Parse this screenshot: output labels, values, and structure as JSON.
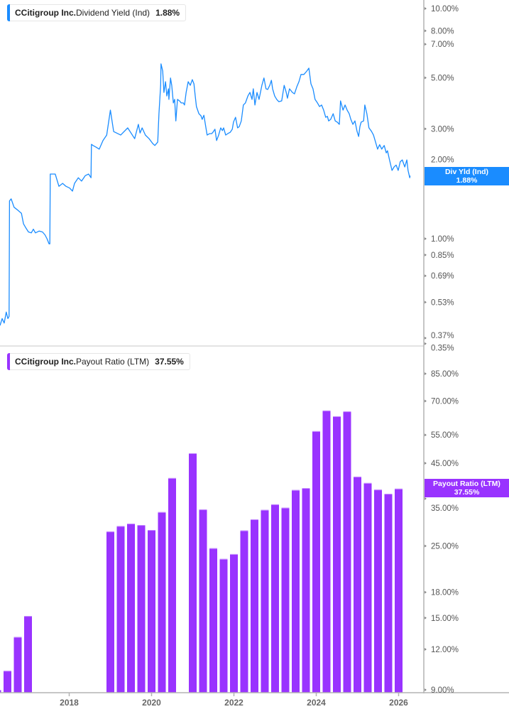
{
  "colors": {
    "yield": "#1a8cff",
    "payout": "#9933ff",
    "axis": "#b3b3b3",
    "divider": "#e3e3e3"
  },
  "top_legend": {
    "ticker": "C",
    "company": "Citigroup Inc.",
    "metric": "Dividend Yield (Ind)",
    "value": "1.88%"
  },
  "top_badge": {
    "label": "Div Yld (Ind)",
    "value": "1.88%"
  },
  "bottom_legend": {
    "ticker": "C",
    "company": "Citigroup Inc.",
    "metric": "Payout Ratio (LTM)",
    "value": "37.55%"
  },
  "bottom_badge": {
    "label": "Payout Ratio (LTM)",
    "value": "37.55%"
  },
  "chart_data": [
    {
      "type": "line",
      "series_label": "Dividend Yield (Ind)",
      "y_scale": "log",
      "y_unit": "%",
      "y_ticks": [
        "10.00%",
        "8.00%",
        "7.00%",
        "5.00%",
        "3.00%",
        "2.00%",
        "1.00%",
        "0.85%",
        "0.69%",
        "0.53%",
        "0.37%",
        "0.35%"
      ],
      "y_tick_values": [
        10,
        8,
        7,
        5,
        3,
        2,
        1,
        0.85,
        0.69,
        0.53,
        0.37,
        0.35
      ],
      "ylim": [
        0.35,
        11
      ],
      "xlim": [
        2016.32,
        2026.61
      ],
      "grid": false,
      "legend": "top-left",
      "last_value": 1.88,
      "points": [
        [
          2016.32,
          0.42
        ],
        [
          2016.37,
          0.45
        ],
        [
          2016.42,
          0.43
        ],
        [
          2016.47,
          0.48
        ],
        [
          2016.51,
          0.45
        ],
        [
          2016.54,
          0.46
        ],
        [
          2016.55,
          1.46
        ],
        [
          2016.59,
          1.49
        ],
        [
          2016.66,
          1.37
        ],
        [
          2016.73,
          1.34
        ],
        [
          2016.84,
          1.29
        ],
        [
          2016.89,
          1.16
        ],
        [
          2016.94,
          1.12
        ],
        [
          2017.01,
          1.07
        ],
        [
          2017.08,
          1.06
        ],
        [
          2017.13,
          1.1
        ],
        [
          2017.18,
          1.06
        ],
        [
          2017.27,
          1.08
        ],
        [
          2017.35,
          1.07
        ],
        [
          2017.41,
          1.04
        ],
        [
          2017.46,
          1.0
        ],
        [
          2017.51,
          0.95
        ],
        [
          2017.53,
          0.95
        ],
        [
          2017.54,
          1.91
        ],
        [
          2017.66,
          1.91
        ],
        [
          2017.75,
          1.69
        ],
        [
          2017.84,
          1.74
        ],
        [
          2017.92,
          1.69
        ],
        [
          2018.01,
          1.66
        ],
        [
          2018.08,
          1.61
        ],
        [
          2018.13,
          1.74
        ],
        [
          2018.22,
          1.84
        ],
        [
          2018.3,
          1.78
        ],
        [
          2018.39,
          1.88
        ],
        [
          2018.47,
          1.91
        ],
        [
          2018.53,
          1.84
        ],
        [
          2018.54,
          2.57
        ],
        [
          2018.58,
          2.54
        ],
        [
          2018.65,
          2.5
        ],
        [
          2018.73,
          2.45
        ],
        [
          2018.82,
          2.67
        ],
        [
          2018.91,
          2.82
        ],
        [
          2019.0,
          3.62
        ],
        [
          2019.08,
          2.92
        ],
        [
          2019.25,
          2.82
        ],
        [
          2019.42,
          3.03
        ],
        [
          2019.59,
          2.72
        ],
        [
          2019.68,
          3.14
        ],
        [
          2019.72,
          2.88
        ],
        [
          2019.77,
          3.03
        ],
        [
          2019.85,
          2.82
        ],
        [
          2019.94,
          2.72
        ],
        [
          2020.03,
          2.59
        ],
        [
          2020.08,
          2.54
        ],
        [
          2020.15,
          2.63
        ],
        [
          2020.18,
          3.49
        ],
        [
          2020.22,
          4.64
        ],
        [
          2020.23,
          5.75
        ],
        [
          2020.27,
          5.35
        ],
        [
          2020.3,
          4.32
        ],
        [
          2020.34,
          4.81
        ],
        [
          2020.37,
          4.17
        ],
        [
          2020.41,
          4.48
        ],
        [
          2020.42,
          4.03
        ],
        [
          2020.46,
          4.99
        ],
        [
          2020.49,
          4.64
        ],
        [
          2020.53,
          3.89
        ],
        [
          2020.56,
          4.03
        ],
        [
          2020.59,
          3.25
        ],
        [
          2020.63,
          4.03
        ],
        [
          2020.68,
          3.97
        ],
        [
          2020.72,
          3.89
        ],
        [
          2020.77,
          3.89
        ],
        [
          2020.8,
          3.81
        ],
        [
          2020.84,
          4.32
        ],
        [
          2020.89,
          4.81
        ],
        [
          2020.94,
          4.64
        ],
        [
          2020.99,
          4.91
        ],
        [
          2021.03,
          4.71
        ],
        [
          2021.06,
          4.17
        ],
        [
          2021.09,
          3.75
        ],
        [
          2021.15,
          3.49
        ],
        [
          2021.2,
          3.42
        ],
        [
          2021.23,
          3.3
        ],
        [
          2021.27,
          3.44
        ],
        [
          2021.32,
          3.03
        ],
        [
          2021.35,
          2.82
        ],
        [
          2021.41,
          2.86
        ],
        [
          2021.46,
          2.86
        ],
        [
          2021.49,
          2.9
        ],
        [
          2021.54,
          2.99
        ],
        [
          2021.58,
          2.67
        ],
        [
          2021.63,
          2.82
        ],
        [
          2021.68,
          3.03
        ],
        [
          2021.72,
          2.95
        ],
        [
          2021.75,
          3.03
        ],
        [
          2021.8,
          2.82
        ],
        [
          2021.85,
          2.86
        ],
        [
          2021.91,
          2.9
        ],
        [
          2021.96,
          2.99
        ],
        [
          2021.99,
          3.21
        ],
        [
          2022.04,
          3.37
        ],
        [
          2022.09,
          3.03
        ],
        [
          2022.13,
          3.07
        ],
        [
          2022.18,
          3.25
        ],
        [
          2022.23,
          3.81
        ],
        [
          2022.28,
          3.89
        ],
        [
          2022.34,
          4.17
        ],
        [
          2022.39,
          4.32
        ],
        [
          2022.44,
          4.03
        ],
        [
          2022.47,
          4.48
        ],
        [
          2022.51,
          3.81
        ],
        [
          2022.56,
          4.32
        ],
        [
          2022.61,
          4.03
        ],
        [
          2022.68,
          4.64
        ],
        [
          2022.73,
          4.99
        ],
        [
          2022.78,
          4.48
        ],
        [
          2022.82,
          4.45
        ],
        [
          2022.87,
          4.64
        ],
        [
          2022.91,
          4.88
        ],
        [
          2022.94,
          4.48
        ],
        [
          2022.99,
          4.17
        ],
        [
          2023.04,
          4.03
        ],
        [
          2023.09,
          3.94
        ],
        [
          2023.16,
          3.97
        ],
        [
          2023.22,
          4.64
        ],
        [
          2023.27,
          4.32
        ],
        [
          2023.3,
          4.08
        ],
        [
          2023.35,
          4.48
        ],
        [
          2023.42,
          4.32
        ],
        [
          2023.47,
          4.26
        ],
        [
          2023.53,
          4.58
        ],
        [
          2023.58,
          4.81
        ],
        [
          2023.63,
          5.17
        ],
        [
          2023.7,
          5.17
        ],
        [
          2023.77,
          5.35
        ],
        [
          2023.82,
          5.51
        ],
        [
          2023.87,
          4.71
        ],
        [
          2023.92,
          4.48
        ],
        [
          2023.97,
          4.03
        ],
        [
          2024.03,
          3.89
        ],
        [
          2024.08,
          3.75
        ],
        [
          2024.13,
          3.81
        ],
        [
          2024.18,
          3.62
        ],
        [
          2024.23,
          3.37
        ],
        [
          2024.27,
          3.4
        ],
        [
          2024.3,
          3.25
        ],
        [
          2024.35,
          3.3
        ],
        [
          2024.41,
          3.49
        ],
        [
          2024.46,
          3.25
        ],
        [
          2024.51,
          3.21
        ],
        [
          2024.56,
          3.14
        ],
        [
          2024.59,
          3.97
        ],
        [
          2024.65,
          3.62
        ],
        [
          2024.7,
          3.81
        ],
        [
          2024.75,
          3.62
        ],
        [
          2024.8,
          3.49
        ],
        [
          2024.84,
          3.3
        ],
        [
          2024.89,
          3.14
        ],
        [
          2024.94,
          3.25
        ],
        [
          2024.99,
          2.93
        ],
        [
          2025.03,
          2.78
        ],
        [
          2025.06,
          3.07
        ],
        [
          2025.09,
          3.21
        ],
        [
          2025.15,
          3.25
        ],
        [
          2025.18,
          3.81
        ],
        [
          2025.23,
          3.49
        ],
        [
          2025.28,
          3.03
        ],
        [
          2025.34,
          2.93
        ],
        [
          2025.39,
          2.82
        ],
        [
          2025.44,
          2.63
        ],
        [
          2025.49,
          2.45
        ],
        [
          2025.54,
          2.56
        ],
        [
          2025.59,
          2.45
        ],
        [
          2025.65,
          2.54
        ],
        [
          2025.7,
          2.36
        ],
        [
          2025.73,
          2.41
        ],
        [
          2025.78,
          2.2
        ],
        [
          2025.84,
          1.98
        ],
        [
          2025.89,
          2.05
        ],
        [
          2025.94,
          2.09
        ],
        [
          2025.99,
          1.98
        ],
        [
          2026.04,
          2.16
        ],
        [
          2026.09,
          2.2
        ],
        [
          2026.15,
          2.05
        ],
        [
          2026.2,
          2.2
        ],
        [
          2026.23,
          1.98
        ],
        [
          2026.27,
          1.84
        ],
        [
          2026.28,
          1.88
        ]
      ]
    },
    {
      "type": "bar",
      "series_label": "Payout Ratio (LTM)",
      "y_scale": "log",
      "y_unit": "%",
      "y_ticks": [
        "85.00%",
        "70.00%",
        "55.00%",
        "45.00%",
        "35.00%",
        "25.00%",
        "18.00%",
        "15.00%",
        "12.00%",
        "9.00%"
      ],
      "y_tick_values": [
        85,
        70,
        55,
        45,
        35,
        25,
        18,
        15,
        12,
        9
      ],
      "x_ticks": [
        "2018",
        "2020",
        "2022",
        "2024",
        "2026"
      ],
      "x_tick_values": [
        2018,
        2020,
        2022,
        2024,
        2026
      ],
      "xlim": [
        2016.32,
        2026.61
      ],
      "grid": false,
      "legend": "top-left",
      "last_value": 37.55,
      "categories": [
        "2016-03",
        "2016-06",
        "2016-09",
        "2016-12",
        "2018-12",
        "2019-03",
        "2019-06",
        "2019-09",
        "2019-12",
        "2020-03",
        "2020-06",
        "2020-12",
        "2021-03",
        "2021-06",
        "2021-09",
        "2021-12",
        "2022-03",
        "2022-06",
        "2022-09",
        "2022-12",
        "2023-03",
        "2023-06",
        "2023-09",
        "2023-12",
        "2024-03",
        "2024-06",
        "2024-09",
        "2024-12",
        "2025-03",
        "2025-06",
        "2025-09",
        "2025-12"
      ],
      "values": [
        9.0,
        10.3,
        13.1,
        15.2,
        27.7,
        28.8,
        29.3,
        29.0,
        28.0,
        31.8,
        40.5,
        48.3,
        32.4,
        24.6,
        22.8,
        23.6,
        27.9,
        30.2,
        32.3,
        33.6,
        32.8,
        37.2,
        37.7,
        56.5,
        65.4,
        62.8,
        65.0,
        40.9,
        39.1,
        37.3,
        36.2,
        37.55
      ]
    }
  ]
}
